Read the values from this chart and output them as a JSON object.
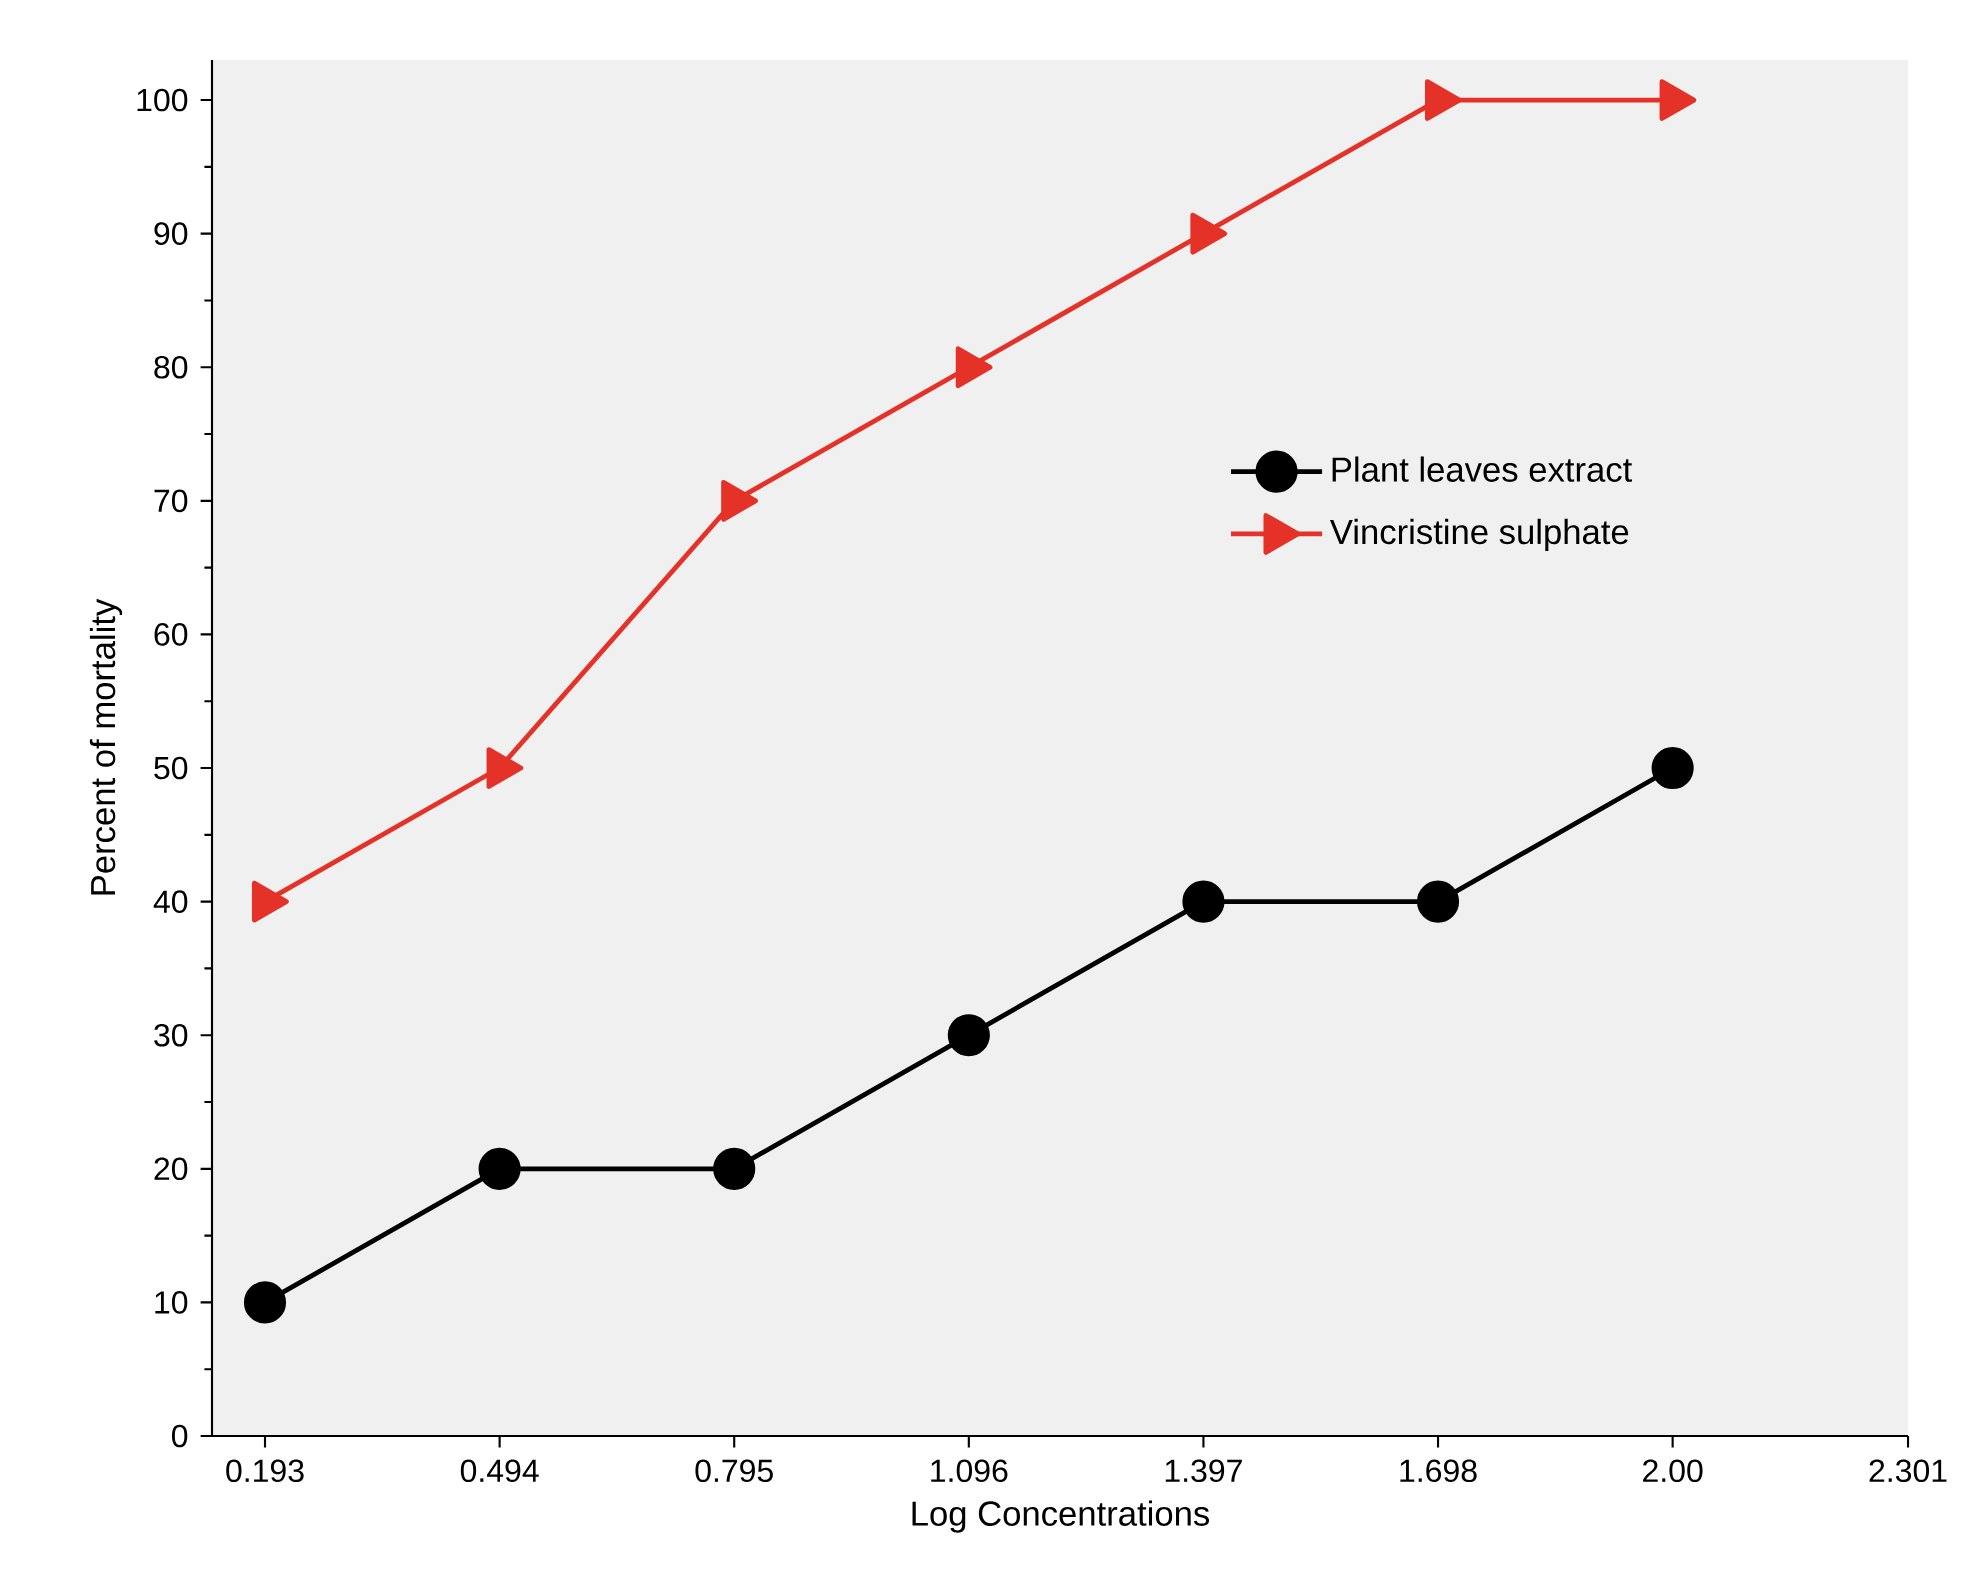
{
  "chart_data": {
    "type": "line",
    "xlabel": "Log Concentrations",
    "ylabel": "Percent of mortality",
    "x": [
      0.193,
      0.494,
      0.795,
      1.096,
      1.397,
      1.698,
      1.999
    ],
    "series": [
      {
        "name": "Plant leaves extract",
        "color": "#000000",
        "marker": "circle",
        "values": [
          10,
          20,
          20,
          30,
          40,
          40,
          50
        ]
      },
      {
        "name": "Vincristine sulphate",
        "color": "#e53228",
        "marker": "triangle",
        "values": [
          40,
          50,
          70,
          80,
          90,
          100,
          100
        ]
      }
    ],
    "xlim": [
      0.125,
      2.301
    ],
    "ylim": [
      0,
      103
    ],
    "xticks": [
      0.193,
      0.494,
      0.795,
      1.096,
      1.397,
      1.698,
      {
        "value": 1.999,
        "label": "2.00"
      },
      2.301
    ],
    "yticks": [
      0,
      10,
      20,
      30,
      40,
      50,
      60,
      70,
      80,
      90,
      100
    ],
    "grid": false,
    "legend": "right",
    "line_style": "solid"
  }
}
